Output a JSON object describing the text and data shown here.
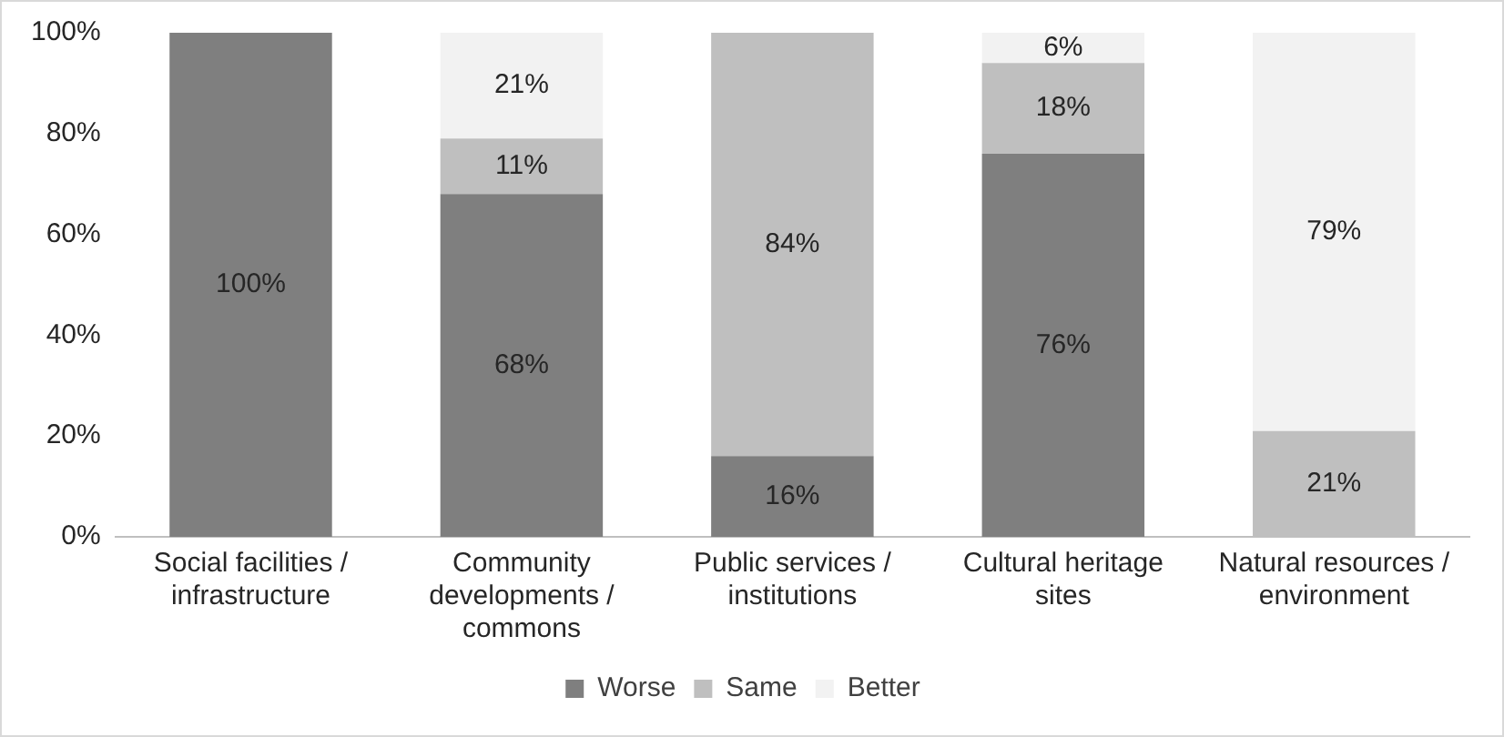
{
  "chart_data": {
    "type": "bar",
    "stacked": true,
    "categories": [
      "Social facilities / infrastructure",
      "Community developments / commons",
      "Public services / institutions",
      "Cultural heritage sites",
      "Natural resources / environment"
    ],
    "series": [
      {
        "name": "Worse",
        "color": "#7f7f7f",
        "values": [
          100,
          68,
          16,
          76,
          0
        ],
        "value_labels": [
          "100%",
          "68%",
          "16%",
          "76%",
          null
        ]
      },
      {
        "name": "Same",
        "color": "#bfbfbf",
        "values": [
          0,
          11,
          84,
          18,
          21
        ],
        "value_labels": [
          null,
          "11%",
          "84%",
          "18%",
          "21%"
        ]
      },
      {
        "name": "Better",
        "color": "#f2f2f2",
        "values": [
          0,
          21,
          0,
          6,
          79
        ],
        "value_labels": [
          null,
          "21%",
          null,
          "6%",
          "79%"
        ]
      }
    ],
    "ylim": [
      0,
      100
    ],
    "yticks": [
      {
        "value": 0,
        "label": "0%"
      },
      {
        "value": 20,
        "label": "20%"
      },
      {
        "value": 40,
        "label": "40%"
      },
      {
        "value": 60,
        "label": "60%"
      },
      {
        "value": 80,
        "label": "80%"
      },
      {
        "value": 100,
        "label": "100%"
      }
    ],
    "grid": false,
    "legend": "bottom"
  }
}
